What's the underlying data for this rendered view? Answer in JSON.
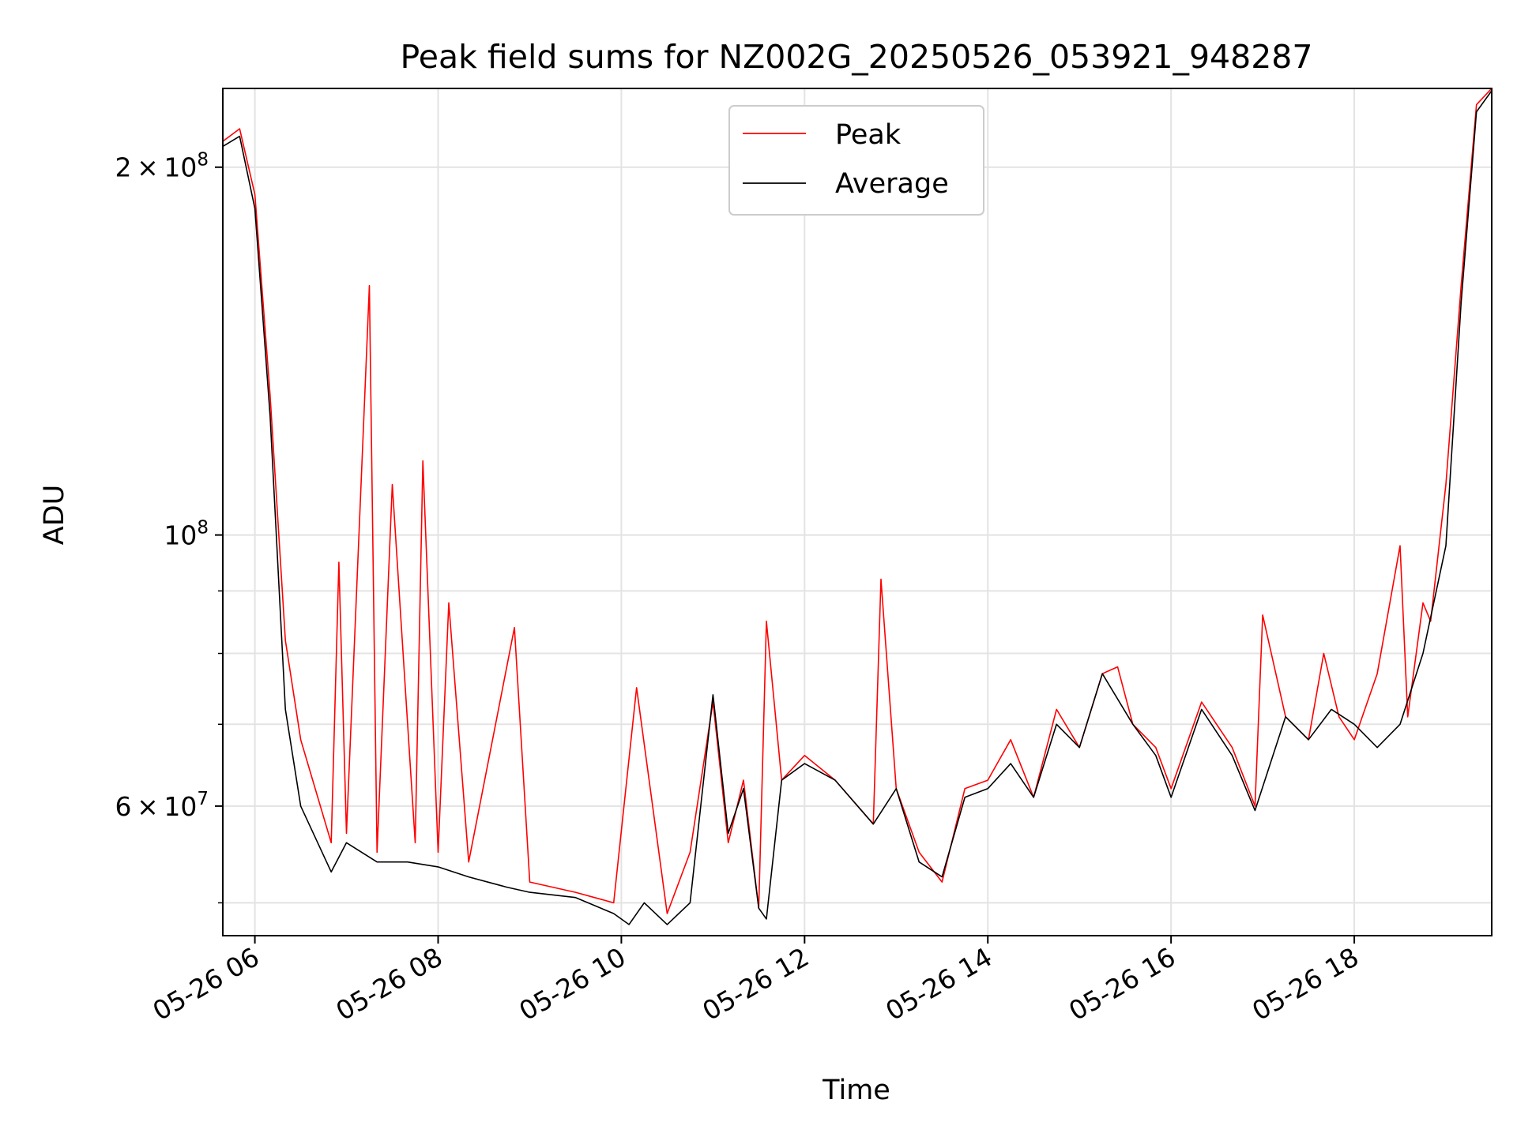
{
  "chart_data": {
    "type": "line",
    "title": "Peak field sums for NZ002G_20250526_053921_948287",
    "xlabel": "Time",
    "ylabel": "ADU",
    "yscale": "log",
    "xlim": [
      "2025-05-26 05:39",
      "2025-05-26 19:30"
    ],
    "ylim": [
      47000000,
      232000000
    ],
    "x_ticks": [
      "05-26 06",
      "05-26 08",
      "05-26 10",
      "05-26 12",
      "05-26 14",
      "05-26 16",
      "05-26 18"
    ],
    "y_ticks": [
      {
        "value": 200000000,
        "mantissa": "2",
        "base": "10",
        "exp": "8"
      },
      {
        "value": 100000000,
        "mantissa": "",
        "base": "10",
        "exp": "8"
      },
      {
        "value": 60000000,
        "mantissa": "6",
        "base": "10",
        "exp": "7"
      }
    ],
    "grid": true,
    "legend_position": "top-center",
    "series": [
      {
        "name": "Peak",
        "color": "#ff0000",
        "x": [
          "2025-05-26 05:39",
          "2025-05-26 05:50",
          "2025-05-26 06:00",
          "2025-05-26 06:10",
          "2025-05-26 06:20",
          "2025-05-26 06:30",
          "2025-05-26 06:50",
          "2025-05-26 06:55",
          "2025-05-26 07:00",
          "2025-05-26 07:15",
          "2025-05-26 07:20",
          "2025-05-26 07:30",
          "2025-05-26 07:45",
          "2025-05-26 07:50",
          "2025-05-26 08:00",
          "2025-05-26 08:07",
          "2025-05-26 08:20",
          "2025-05-26 08:50",
          "2025-05-26 09:00",
          "2025-05-26 09:30",
          "2025-05-26 09:55",
          "2025-05-26 10:10",
          "2025-05-26 10:30",
          "2025-05-26 10:45",
          "2025-05-26 11:00",
          "2025-05-26 11:10",
          "2025-05-26 11:20",
          "2025-05-26 11:30",
          "2025-05-26 11:35",
          "2025-05-26 11:45",
          "2025-05-26 12:00",
          "2025-05-26 12:20",
          "2025-05-26 12:45",
          "2025-05-26 12:50",
          "2025-05-26 13:00",
          "2025-05-26 13:15",
          "2025-05-26 13:30",
          "2025-05-26 13:45",
          "2025-05-26 14:00",
          "2025-05-26 14:15",
          "2025-05-26 14:30",
          "2025-05-26 14:45",
          "2025-05-26 15:00",
          "2025-05-26 15:15",
          "2025-05-26 15:25",
          "2025-05-26 15:35",
          "2025-05-26 15:50",
          "2025-05-26 16:00",
          "2025-05-26 16:20",
          "2025-05-26 16:40",
          "2025-05-26 16:55",
          "2025-05-26 17:00",
          "2025-05-26 17:15",
          "2025-05-26 17:30",
          "2025-05-26 17:40",
          "2025-05-26 17:50",
          "2025-05-26 18:00",
          "2025-05-26 18:15",
          "2025-05-26 18:30",
          "2025-05-26 18:35",
          "2025-05-26 18:45",
          "2025-05-26 18:50",
          "2025-05-26 19:00",
          "2025-05-26 19:10",
          "2025-05-26 19:20",
          "2025-05-26 19:30"
        ],
        "values": [
          210000000,
          215000000,
          190000000,
          130000000,
          82000000,
          68000000,
          56000000,
          95000000,
          57000000,
          160000000,
          55000000,
          110000000,
          56000000,
          115000000,
          55000000,
          88000000,
          54000000,
          84000000,
          52000000,
          51000000,
          50000000,
          75000000,
          49000000,
          55000000,
          73000000,
          56000000,
          63000000,
          49500000,
          85000000,
          63000000,
          66000000,
          63000000,
          58000000,
          92000000,
          62000000,
          55000000,
          52000000,
          62000000,
          63000000,
          68000000,
          61000000,
          72000000,
          67000000,
          77000000,
          78000000,
          70000000,
          67000000,
          62000000,
          73000000,
          67000000,
          60000000,
          86000000,
          71000000,
          68000000,
          80000000,
          71000000,
          68000000,
          77000000,
          98000000,
          71000000,
          88000000,
          85000000,
          110000000,
          160000000,
          225000000,
          232000000
        ]
      },
      {
        "name": "Average",
        "color": "#000000",
        "x": [
          "2025-05-26 05:39",
          "2025-05-26 05:50",
          "2025-05-26 06:00",
          "2025-05-26 06:10",
          "2025-05-26 06:20",
          "2025-05-26 06:30",
          "2025-05-26 06:50",
          "2025-05-26 07:00",
          "2025-05-26 07:20",
          "2025-05-26 07:40",
          "2025-05-26 08:00",
          "2025-05-26 08:20",
          "2025-05-26 08:45",
          "2025-05-26 09:00",
          "2025-05-26 09:30",
          "2025-05-26 09:55",
          "2025-05-26 10:05",
          "2025-05-26 10:15",
          "2025-05-26 10:30",
          "2025-05-26 10:45",
          "2025-05-26 11:00",
          "2025-05-26 11:10",
          "2025-05-26 11:20",
          "2025-05-26 11:30",
          "2025-05-26 11:35",
          "2025-05-26 11:45",
          "2025-05-26 12:00",
          "2025-05-26 12:20",
          "2025-05-26 12:45",
          "2025-05-26 13:00",
          "2025-05-26 13:15",
          "2025-05-26 13:30",
          "2025-05-26 13:45",
          "2025-05-26 14:00",
          "2025-05-26 14:15",
          "2025-05-26 14:30",
          "2025-05-26 14:45",
          "2025-05-26 15:00",
          "2025-05-26 15:15",
          "2025-05-26 15:35",
          "2025-05-26 15:50",
          "2025-05-26 16:00",
          "2025-05-26 16:20",
          "2025-05-26 16:40",
          "2025-05-26 16:55",
          "2025-05-26 17:15",
          "2025-05-26 17:30",
          "2025-05-26 17:45",
          "2025-05-26 18:00",
          "2025-05-26 18:15",
          "2025-05-26 18:30",
          "2025-05-26 18:45",
          "2025-05-26 19:00",
          "2025-05-26 19:10",
          "2025-05-26 19:20",
          "2025-05-26 19:30"
        ],
        "values": [
          208000000,
          212000000,
          185000000,
          125000000,
          72000000,
          60000000,
          53000000,
          56000000,
          54000000,
          54000000,
          53500000,
          52500000,
          51500000,
          51000000,
          50500000,
          49000000,
          48000000,
          50000000,
          48000000,
          50000000,
          74000000,
          57000000,
          62000000,
          49500000,
          48500000,
          63000000,
          65000000,
          63000000,
          58000000,
          62000000,
          54000000,
          52500000,
          61000000,
          62000000,
          65000000,
          61000000,
          70000000,
          67000000,
          77000000,
          70000000,
          66000000,
          61000000,
          72000000,
          66000000,
          59500000,
          71000000,
          68000000,
          72000000,
          70000000,
          67000000,
          70000000,
          80000000,
          98000000,
          155000000,
          222000000,
          231000000
        ]
      }
    ]
  }
}
